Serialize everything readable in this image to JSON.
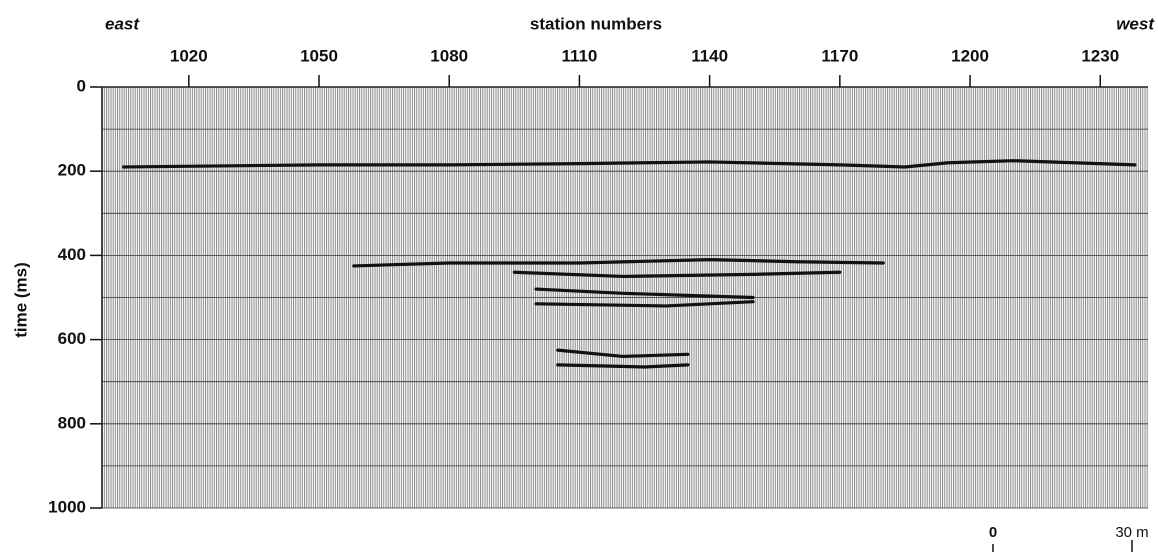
{
  "chart_data": {
    "type": "line",
    "title": "station numbers",
    "left_label": "east",
    "right_label": "west",
    "y_label": "time (ms)",
    "xlim": [
      1000,
      1241
    ],
    "xticks": [
      1020,
      1050,
      1080,
      1110,
      1140,
      1170,
      1200,
      1230
    ],
    "ylim": [
      0,
      1000
    ],
    "y_inverted": true,
    "yticks": [
      0,
      200,
      400,
      600,
      800,
      1000
    ],
    "minor_yticks": [
      100,
      300,
      500,
      700,
      900
    ],
    "grid": true,
    "series": [
      {
        "color": "#111",
        "x": [
          1005,
          1050,
          1080,
          1110,
          1140,
          1170,
          1185,
          1195,
          1210,
          1238
        ],
        "values": [
          190,
          185,
          185,
          182,
          178,
          185,
          190,
          180,
          175,
          185
        ]
      },
      {
        "color": "#111",
        "x": [
          1058,
          1080,
          1110,
          1140,
          1160,
          1180
        ],
        "values": [
          425,
          418,
          418,
          410,
          415,
          418
        ]
      },
      {
        "color": "#111",
        "x": [
          1095,
          1120,
          1150,
          1170
        ],
        "values": [
          440,
          450,
          445,
          440
        ]
      },
      {
        "color": "#111",
        "x": [
          1100,
          1120,
          1150
        ],
        "values": [
          480,
          490,
          500
        ]
      },
      {
        "color": "#111",
        "x": [
          1100,
          1130,
          1150
        ],
        "values": [
          515,
          520,
          510
        ]
      },
      {
        "color": "#111",
        "x": [
          1105,
          1120,
          1135
        ],
        "values": [
          625,
          640,
          635
        ]
      },
      {
        "color": "#111",
        "x": [
          1105,
          1125,
          1135
        ],
        "values": [
          660,
          665,
          660
        ]
      }
    ],
    "scale_bar": {
      "labels": [
        "0",
        "30 m"
      ]
    }
  }
}
